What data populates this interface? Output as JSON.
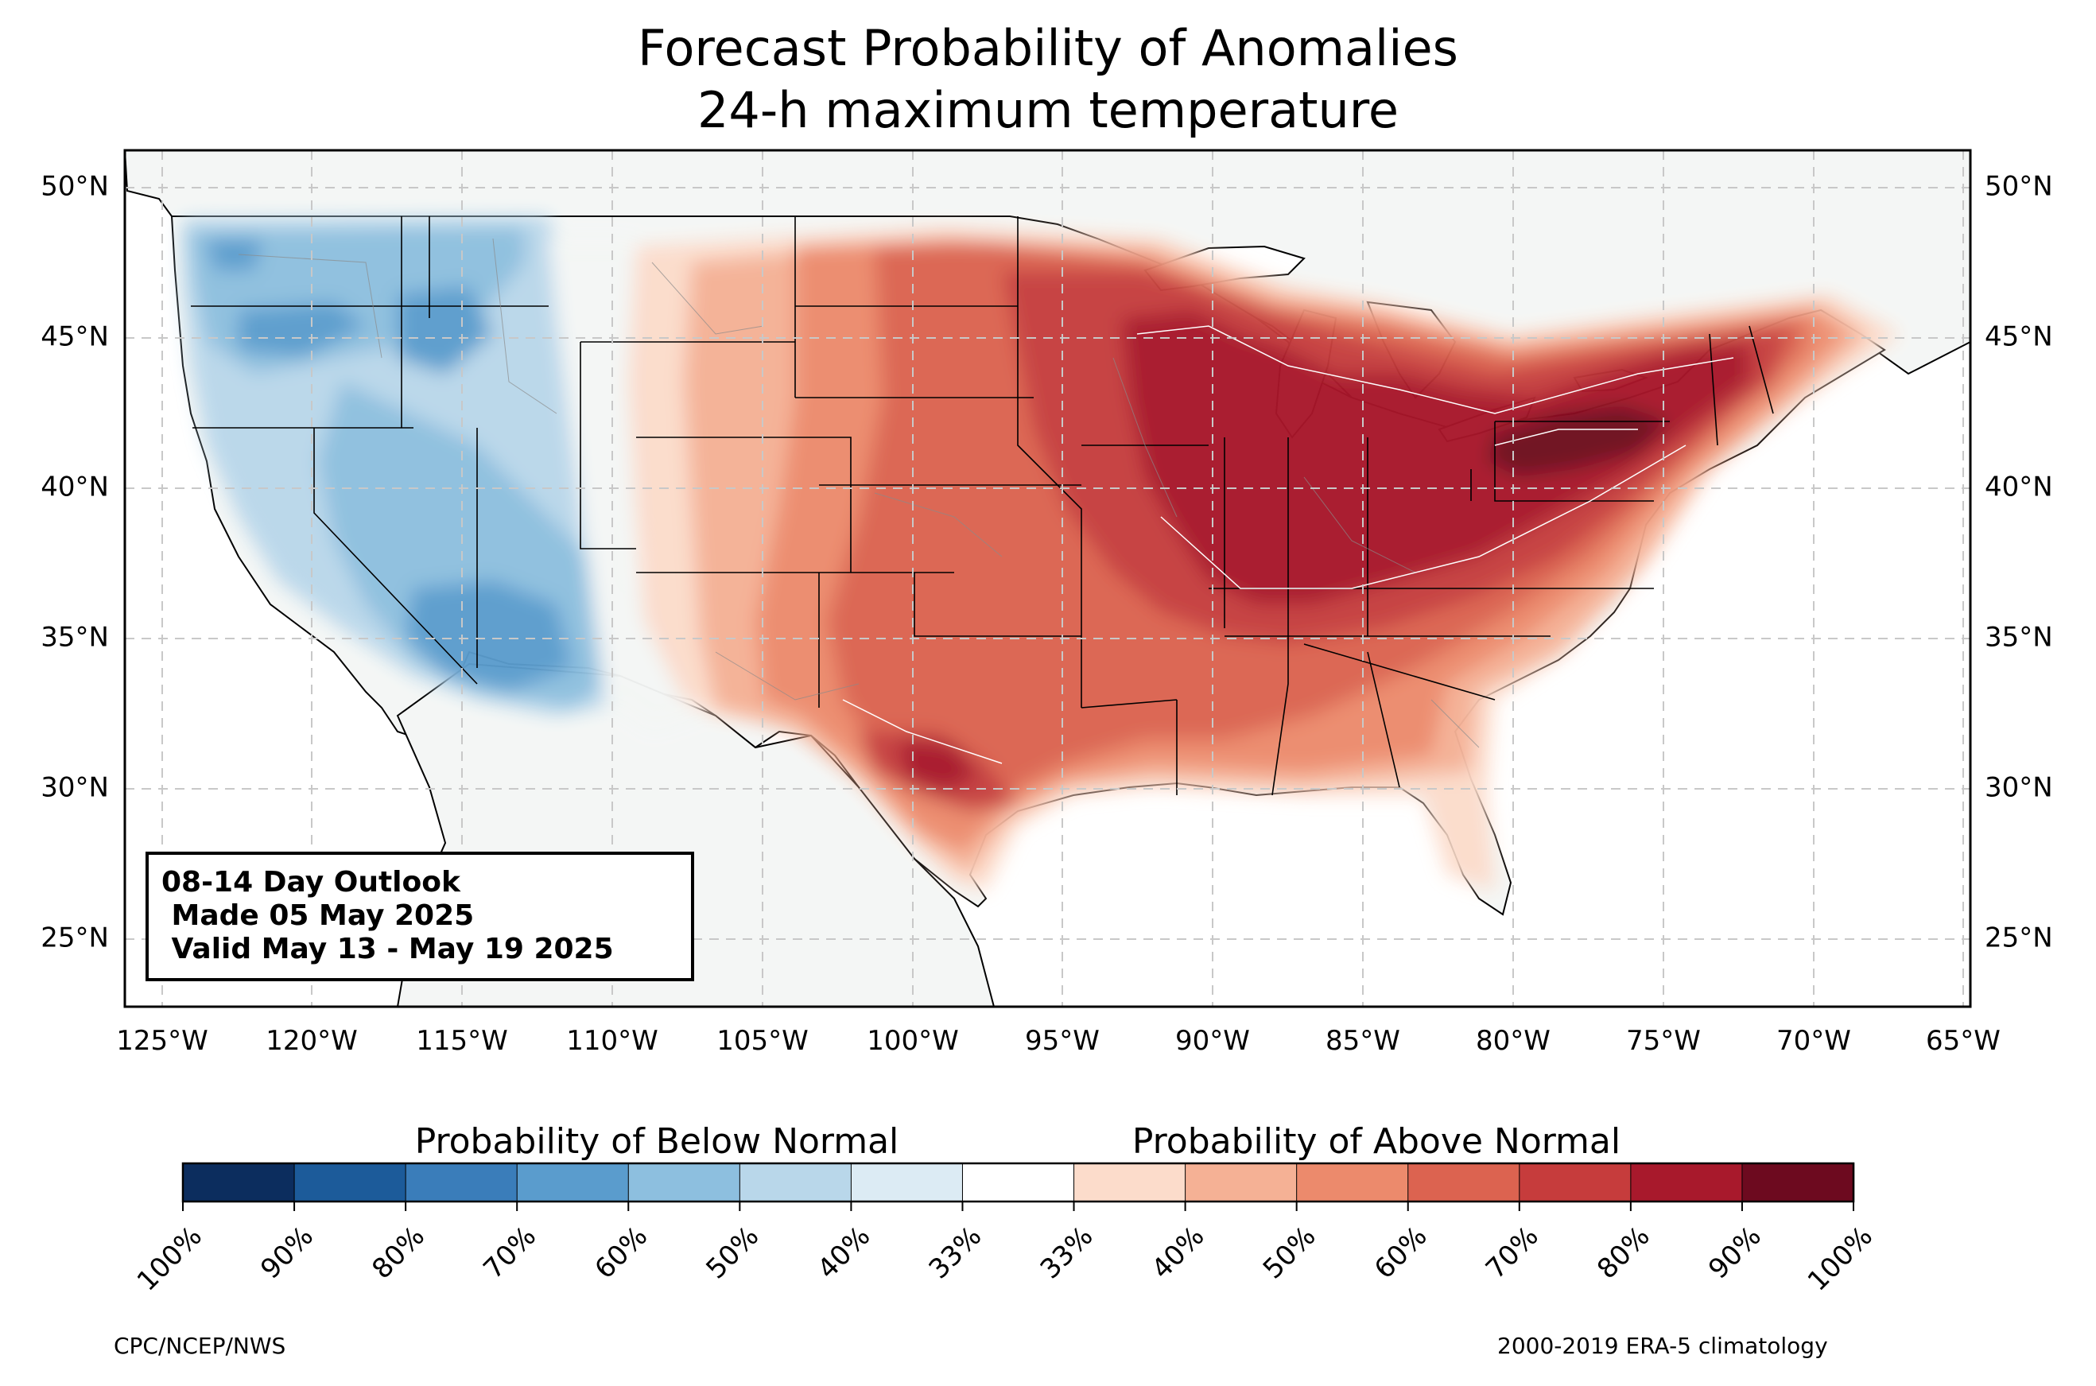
{
  "title": {
    "line1": "Forecast Probability of Anomalies",
    "line2": "24-h maximum temperature"
  },
  "map": {
    "region": "contiguous United States",
    "latitude_labels": [
      "50°N",
      "45°N",
      "40°N",
      "35°N",
      "30°N",
      "25°N"
    ],
    "longitude_labels": [
      "125°W",
      "120°W",
      "115°W",
      "110°W",
      "105°W",
      "100°W",
      "95°W",
      "90°W",
      "85°W",
      "80°W",
      "75°W",
      "70°W",
      "65°W"
    ],
    "gridlines": true,
    "colors": {
      "land_background": "#f4f6f5",
      "ocean": "#ffffff",
      "borders": "#000000",
      "county_lines": "#888888"
    },
    "anomaly_pattern": {
      "below_normal_regions": [
        "Pacific Northwest",
        "Great Basin",
        "Southwest / Four Corners"
      ],
      "above_normal_regions": [
        "Great Plains",
        "Texas",
        "Midwest",
        "Ohio Valley",
        "Great Lakes",
        "Mid-Atlantic",
        "Northeast",
        "Southeast"
      ],
      "peak_above_normal": "Pennsylvania / Ohio Valley (90–100%)"
    }
  },
  "outlook_box": {
    "line1": "08-14 Day Outlook",
    "line2": " Made 05 May 2025",
    "line3": " Valid May 13 - May 19 2025"
  },
  "colorbar": {
    "below_title": "Probability of Below Normal",
    "above_title": "Probability of Above Normal",
    "tick_labels": [
      "100%",
      "90%",
      "80%",
      "70%",
      "60%",
      "50%",
      "40%",
      "33%",
      "33%",
      "40%",
      "50%",
      "60%",
      "70%",
      "80%",
      "90%",
      "100%"
    ],
    "colors": [
      "#0c2d5e",
      "#1c5b9a",
      "#3a7dba",
      "#5a9ccd",
      "#8dbfdf",
      "#b9d7ea",
      "#dcebf4",
      "#ffffff",
      "#fcdccb",
      "#f5b195",
      "#ec8a6c",
      "#dc6350",
      "#c63c3c",
      "#a8192c",
      "#6d0a1f"
    ]
  },
  "footer": {
    "left": "CPC/NCEP/NWS",
    "right": "2000-2019 ERA-5 climatology"
  }
}
